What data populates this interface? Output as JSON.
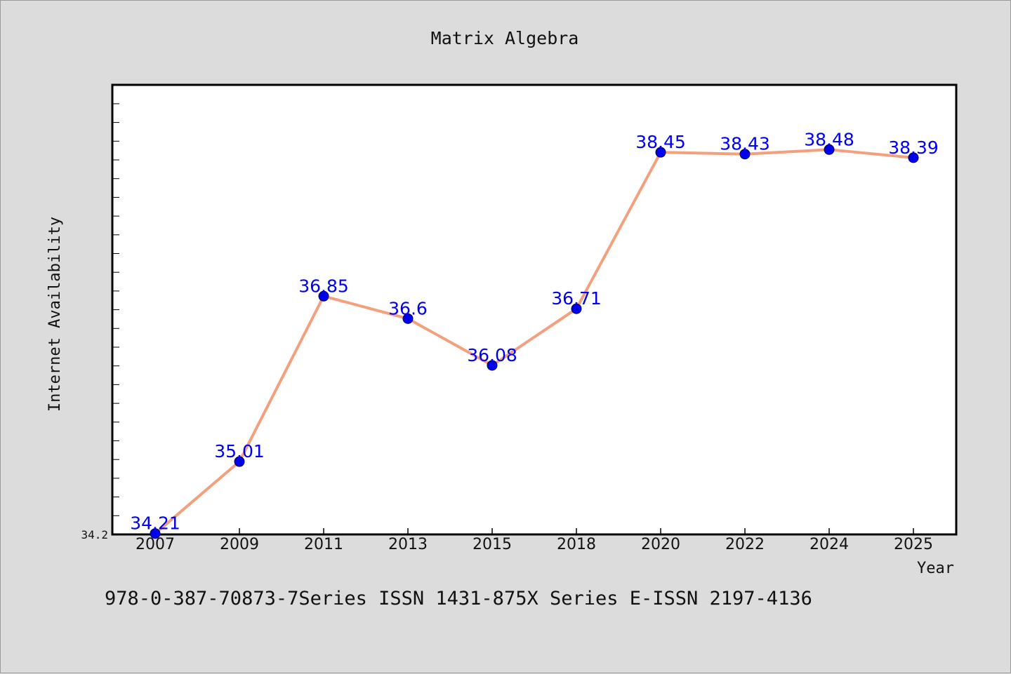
{
  "chart_data": {
    "type": "line",
    "title": "Matrix Algebra",
    "xlabel": "Year",
    "ylabel": "Internet Availability",
    "categories": [
      "2007",
      "2009",
      "2011",
      "2013",
      "2015",
      "2018",
      "2020",
      "2022",
      "2024",
      "2025"
    ],
    "series": [
      {
        "values": [
          34.21,
          35.01,
          36.85,
          36.6,
          36.08,
          36.71,
          38.45,
          38.43,
          38.48,
          38.39
        ],
        "labels": [
          "34.21",
          "35.01",
          "36.85",
          "36.6",
          "36.08",
          "36.71",
          "38.45",
          "38.43",
          "38.48",
          "38.39"
        ]
      }
    ],
    "yticks": [
      "34.2"
    ],
    "ylim": [
      34.2,
      39.2
    ],
    "grid": false,
    "legend": "none",
    "colors": {
      "line": "#f4a07e",
      "marker": "#0000ee",
      "data_label": "#0000ee",
      "plot_background": "#ffffff",
      "page_background": "#dcdcdc"
    }
  },
  "footer": {
    "text": "978-0-387-70873-7Series ISSN 1431-875X Series E-ISSN 2197-4136"
  }
}
